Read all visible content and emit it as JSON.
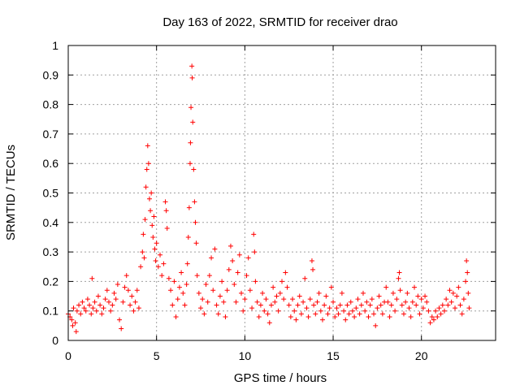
{
  "chart_data": {
    "type": "scatter",
    "title": "Day 163 of 2022, SRMTID for receiver drao",
    "xlabel": "GPS time / hours",
    "ylabel": "SRMTID / TECUs",
    "xlim": [
      0,
      24.2
    ],
    "ylim": [
      0,
      1
    ],
    "xticks": [
      0,
      5,
      10,
      15,
      20
    ],
    "xtick_labels": [
      "0",
      "5",
      "10",
      "15",
      "20"
    ],
    "yticks": [
      0,
      0.1,
      0.2,
      0.3,
      0.4,
      0.5,
      0.6,
      0.7,
      0.8,
      0.9,
      1
    ],
    "ytick_labels": [
      "0",
      "0.1",
      "0.2",
      "0.3",
      "0.4",
      "0.5",
      "0.6",
      "0.7",
      "0.8",
      "0.9",
      "1"
    ],
    "grid": true,
    "marker": "+",
    "color": "#ff0000",
    "series": [
      {
        "name": "drao",
        "points": [
          [
            0.0,
            0.09
          ],
          [
            0.1,
            0.08
          ],
          [
            0.2,
            0.07
          ],
          [
            0.25,
            0.05
          ],
          [
            0.3,
            0.11
          ],
          [
            0.4,
            0.06
          ],
          [
            0.45,
            0.03
          ],
          [
            0.5,
            0.1
          ],
          [
            0.6,
            0.12
          ],
          [
            0.7,
            0.09
          ],
          [
            0.8,
            0.13
          ],
          [
            0.9,
            0.11
          ],
          [
            1.0,
            0.1
          ],
          [
            1.1,
            0.14
          ],
          [
            1.2,
            0.12
          ],
          [
            1.3,
            0.09
          ],
          [
            1.35,
            0.21
          ],
          [
            1.4,
            0.11
          ],
          [
            1.5,
            0.13
          ],
          [
            1.6,
            0.1
          ],
          [
            1.7,
            0.15
          ],
          [
            1.8,
            0.12
          ],
          [
            1.9,
            0.09
          ],
          [
            2.0,
            0.11
          ],
          [
            2.1,
            0.14
          ],
          [
            2.2,
            0.17
          ],
          [
            2.3,
            0.13
          ],
          [
            2.4,
            0.1
          ],
          [
            2.5,
            0.12
          ],
          [
            2.6,
            0.16
          ],
          [
            2.7,
            0.14
          ],
          [
            2.8,
            0.19
          ],
          [
            2.9,
            0.07
          ],
          [
            3.0,
            0.04
          ],
          [
            3.1,
            0.13
          ],
          [
            3.2,
            0.18
          ],
          [
            3.3,
            0.22
          ],
          [
            3.4,
            0.17
          ],
          [
            3.5,
            0.12
          ],
          [
            3.6,
            0.15
          ],
          [
            3.7,
            0.1
          ],
          [
            3.8,
            0.13
          ],
          [
            3.9,
            0.17
          ],
          [
            4.0,
            0.11
          ],
          [
            4.1,
            0.25
          ],
          [
            4.2,
            0.3
          ],
          [
            4.25,
            0.36
          ],
          [
            4.3,
            0.28
          ],
          [
            4.35,
            0.41
          ],
          [
            4.4,
            0.52
          ],
          [
            4.45,
            0.58
          ],
          [
            4.5,
            0.66
          ],
          [
            4.55,
            0.6
          ],
          [
            4.6,
            0.48
          ],
          [
            4.65,
            0.44
          ],
          [
            4.7,
            0.5
          ],
          [
            4.75,
            0.39
          ],
          [
            4.8,
            0.35
          ],
          [
            4.85,
            0.42
          ],
          [
            4.9,
            0.31
          ],
          [
            4.95,
            0.27
          ],
          [
            5.0,
            0.33
          ],
          [
            5.1,
            0.25
          ],
          [
            5.2,
            0.29
          ],
          [
            5.3,
            0.22
          ],
          [
            5.4,
            0.26
          ],
          [
            5.5,
            0.47
          ],
          [
            5.55,
            0.44
          ],
          [
            5.6,
            0.38
          ],
          [
            5.7,
            0.21
          ],
          [
            5.8,
            0.17
          ],
          [
            5.9,
            0.12
          ],
          [
            6.0,
            0.2
          ],
          [
            6.1,
            0.08
          ],
          [
            6.2,
            0.14
          ],
          [
            6.3,
            0.18
          ],
          [
            6.4,
            0.23
          ],
          [
            6.5,
            0.16
          ],
          [
            6.6,
            0.12
          ],
          [
            6.7,
            0.19
          ],
          [
            6.75,
            0.26
          ],
          [
            6.8,
            0.35
          ],
          [
            6.85,
            0.45
          ],
          [
            6.9,
            0.6
          ],
          [
            6.92,
            0.67
          ],
          [
            6.95,
            0.79
          ],
          [
            7.0,
            0.93
          ],
          [
            7.02,
            0.89
          ],
          [
            7.05,
            0.74
          ],
          [
            7.1,
            0.58
          ],
          [
            7.15,
            0.47
          ],
          [
            7.2,
            0.4
          ],
          [
            7.25,
            0.33
          ],
          [
            7.3,
            0.22
          ],
          [
            7.4,
            0.16
          ],
          [
            7.5,
            0.11
          ],
          [
            7.6,
            0.14
          ],
          [
            7.7,
            0.09
          ],
          [
            7.8,
            0.19
          ],
          [
            7.9,
            0.13
          ],
          [
            8.0,
            0.22
          ],
          [
            8.1,
            0.28
          ],
          [
            8.2,
            0.17
          ],
          [
            8.3,
            0.31
          ],
          [
            8.4,
            0.12
          ],
          [
            8.5,
            0.09
          ],
          [
            8.6,
            0.15
          ],
          [
            8.7,
            0.2
          ],
          [
            8.8,
            0.13
          ],
          [
            8.9,
            0.08
          ],
          [
            9.0,
            0.17
          ],
          [
            9.1,
            0.24
          ],
          [
            9.2,
            0.32
          ],
          [
            9.3,
            0.27
          ],
          [
            9.4,
            0.19
          ],
          [
            9.5,
            0.13
          ],
          [
            9.6,
            0.23
          ],
          [
            9.7,
            0.29
          ],
          [
            9.8,
            0.16
          ],
          [
            9.9,
            0.1
          ],
          [
            10.0,
            0.14
          ],
          [
            10.1,
            0.22
          ],
          [
            10.2,
            0.28
          ],
          [
            10.3,
            0.17
          ],
          [
            10.4,
            0.11
          ],
          [
            10.5,
            0.36
          ],
          [
            10.55,
            0.3
          ],
          [
            10.6,
            0.2
          ],
          [
            10.7,
            0.13
          ],
          [
            10.8,
            0.08
          ],
          [
            10.9,
            0.12
          ],
          [
            11.0,
            0.16
          ],
          [
            11.1,
            0.1
          ],
          [
            11.2,
            0.14
          ],
          [
            11.3,
            0.09
          ],
          [
            11.4,
            0.06
          ],
          [
            11.5,
            0.12
          ],
          [
            11.6,
            0.18
          ],
          [
            11.7,
            0.13
          ],
          [
            11.8,
            0.15
          ],
          [
            11.9,
            0.1
          ],
          [
            12.0,
            0.16
          ],
          [
            12.1,
            0.2
          ],
          [
            12.2,
            0.14
          ],
          [
            12.3,
            0.23
          ],
          [
            12.4,
            0.18
          ],
          [
            12.5,
            0.12
          ],
          [
            12.6,
            0.08
          ],
          [
            12.7,
            0.14
          ],
          [
            12.8,
            0.1
          ],
          [
            12.9,
            0.07
          ],
          [
            13.0,
            0.12
          ],
          [
            13.1,
            0.15
          ],
          [
            13.2,
            0.09
          ],
          [
            13.3,
            0.13
          ],
          [
            13.4,
            0.21
          ],
          [
            13.5,
            0.11
          ],
          [
            13.6,
            0.08
          ],
          [
            13.7,
            0.14
          ],
          [
            13.8,
            0.27
          ],
          [
            13.85,
            0.24
          ],
          [
            13.9,
            0.12
          ],
          [
            14.0,
            0.09
          ],
          [
            14.1,
            0.13
          ],
          [
            14.2,
            0.16
          ],
          [
            14.3,
            0.1
          ],
          [
            14.4,
            0.07
          ],
          [
            14.5,
            0.12
          ],
          [
            14.6,
            0.15
          ],
          [
            14.7,
            0.09
          ],
          [
            14.8,
            0.11
          ],
          [
            14.9,
            0.18
          ],
          [
            15.0,
            0.13
          ],
          [
            15.1,
            0.08
          ],
          [
            15.2,
            0.11
          ],
          [
            15.3,
            0.09
          ],
          [
            15.4,
            0.12
          ],
          [
            15.5,
            0.16
          ],
          [
            15.6,
            0.1
          ],
          [
            15.7,
            0.07
          ],
          [
            15.8,
            0.12
          ],
          [
            15.9,
            0.09
          ],
          [
            16.0,
            0.13
          ],
          [
            16.1,
            0.1
          ],
          [
            16.2,
            0.08
          ],
          [
            16.3,
            0.11
          ],
          [
            16.4,
            0.14
          ],
          [
            16.5,
            0.09
          ],
          [
            16.6,
            0.12
          ],
          [
            16.7,
            0.16
          ],
          [
            16.8,
            0.1
          ],
          [
            16.9,
            0.13
          ],
          [
            17.0,
            0.08
          ],
          [
            17.1,
            0.12
          ],
          [
            17.2,
            0.14
          ],
          [
            17.3,
            0.09
          ],
          [
            17.4,
            0.05
          ],
          [
            17.5,
            0.11
          ],
          [
            17.6,
            0.15
          ],
          [
            17.7,
            0.12
          ],
          [
            17.8,
            0.09
          ],
          [
            17.9,
            0.13
          ],
          [
            18.0,
            0.18
          ],
          [
            18.1,
            0.13
          ],
          [
            18.2,
            0.08
          ],
          [
            18.3,
            0.12
          ],
          [
            18.4,
            0.16
          ],
          [
            18.5,
            0.1
          ],
          [
            18.6,
            0.14
          ],
          [
            18.7,
            0.21
          ],
          [
            18.75,
            0.23
          ],
          [
            18.8,
            0.17
          ],
          [
            18.9,
            0.12
          ],
          [
            19.0,
            0.09
          ],
          [
            19.1,
            0.13
          ],
          [
            19.2,
            0.16
          ],
          [
            19.3,
            0.11
          ],
          [
            19.4,
            0.08
          ],
          [
            19.5,
            0.13
          ],
          [
            19.6,
            0.18
          ],
          [
            19.7,
            0.12
          ],
          [
            19.8,
            0.15
          ],
          [
            19.9,
            0.09
          ],
          [
            20.0,
            0.14
          ],
          [
            20.1,
            0.11
          ],
          [
            20.2,
            0.15
          ],
          [
            20.3,
            0.13
          ],
          [
            20.4,
            0.1
          ],
          [
            20.5,
            0.06
          ],
          [
            20.6,
            0.08
          ],
          [
            20.7,
            0.07
          ],
          [
            20.8,
            0.1
          ],
          [
            20.9,
            0.08
          ],
          [
            21.0,
            0.11
          ],
          [
            21.1,
            0.09
          ],
          [
            21.2,
            0.12
          ],
          [
            21.3,
            0.1
          ],
          [
            21.4,
            0.14
          ],
          [
            21.5,
            0.12
          ],
          [
            21.6,
            0.17
          ],
          [
            21.7,
            0.13
          ],
          [
            21.8,
            0.16
          ],
          [
            21.9,
            0.11
          ],
          [
            22.0,
            0.15
          ],
          [
            22.1,
            0.18
          ],
          [
            22.2,
            0.12
          ],
          [
            22.3,
            0.09
          ],
          [
            22.4,
            0.14
          ],
          [
            22.5,
            0.2
          ],
          [
            22.55,
            0.27
          ],
          [
            22.6,
            0.23
          ],
          [
            22.65,
            0.16
          ],
          [
            22.7,
            0.11
          ]
        ]
      }
    ]
  }
}
